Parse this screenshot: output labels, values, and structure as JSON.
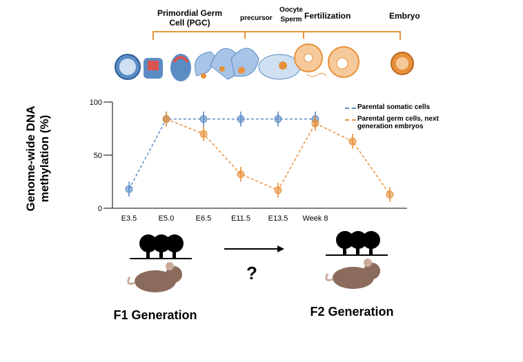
{
  "chart_data": {
    "type": "line",
    "y_label": "Genome-wide DNA methylation (%)",
    "categories": [
      "E3.5",
      "E5.0",
      "E6.5",
      "E11.5",
      "E13.5",
      "Week 8",
      null,
      null
    ],
    "series": [
      {
        "name": "Parental somatic cells",
        "color": "#5b8cc4",
        "values": [
          18,
          84,
          84,
          84,
          84,
          84,
          null,
          null
        ],
        "errors": [
          7,
          7,
          7,
          7,
          7,
          7,
          null,
          null
        ]
      },
      {
        "name": "Parental germ cells, next generation embryos",
        "color": "#e8913a",
        "values": [
          null,
          84,
          70,
          32,
          17,
          80,
          63,
          13
        ],
        "errors": [
          null,
          7,
          7,
          7,
          7,
          7,
          7,
          7
        ]
      }
    ],
    "ylim": [
      0,
      100
    ],
    "yticks": [
      0,
      50,
      100
    ]
  },
  "stages": [
    "Primordial Germ Cell (PGC)",
    "precursor",
    "Oocyte Sperm",
    "Fertilization",
    "Embryo"
  ],
  "transition": "?",
  "generations": [
    "F1 Generation",
    "F2 Generation"
  ]
}
